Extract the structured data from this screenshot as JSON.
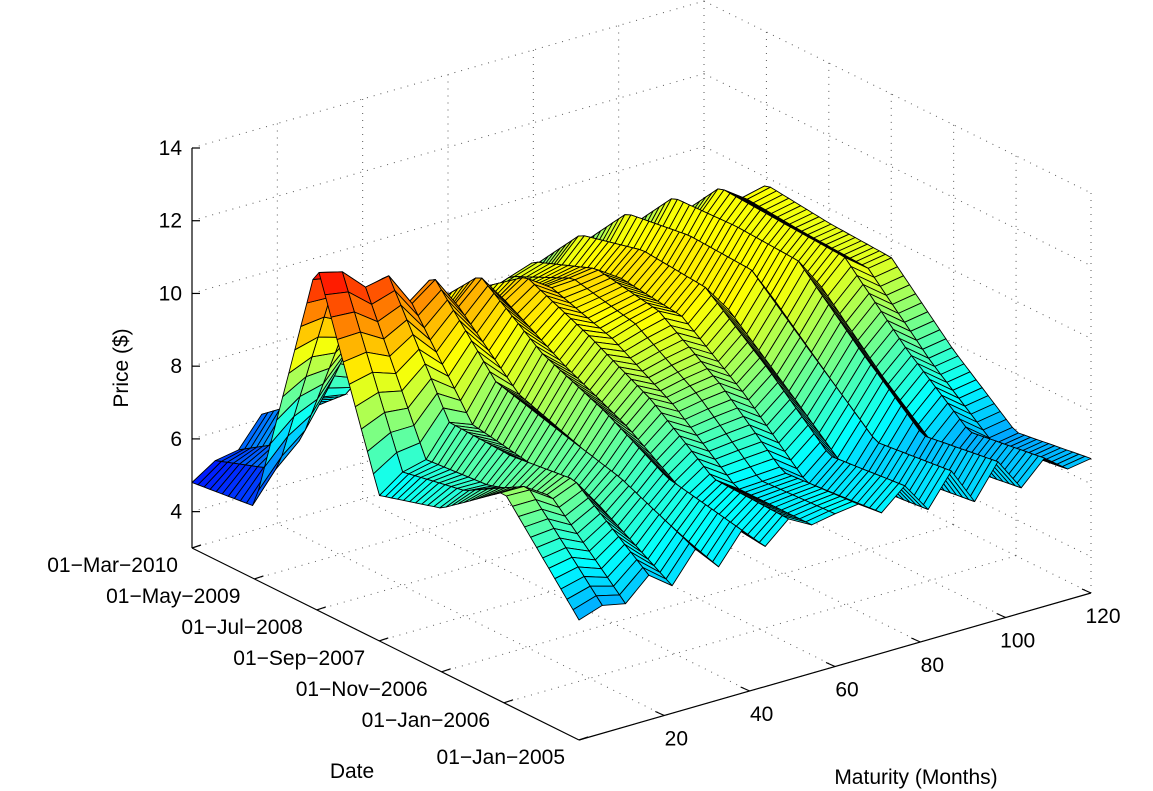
{
  "chart_data": {
    "type": "surface",
    "title": "",
    "xlabel": "Maturity (Months)",
    "ylabel": "Date",
    "zlabel": "Price ($)",
    "x_ticks": [
      20,
      40,
      60,
      80,
      100,
      120
    ],
    "y_ticks": [
      "01-Jan-2005",
      "01-Jan-2006",
      "01-Nov-2006",
      "01-Sep-2007",
      "01-Jul-2008",
      "01-May-2009",
      "01-Mar-2010"
    ],
    "z_ticks": [
      4,
      6,
      8,
      10,
      12,
      14
    ],
    "xlim": [
      0,
      120
    ],
    "ylim": [
      "01-Jan-2005",
      "01-Mar-2010"
    ],
    "zlim": [
      3,
      14
    ],
    "grid": true,
    "colormap": "jet",
    "colormap_stops": [
      "#00008f",
      "#0000ff",
      "#00ffff",
      "#ffff00",
      "#ff0000",
      "#800000"
    ],
    "maturity_months": [
      1,
      12,
      24,
      36,
      48,
      60,
      72,
      84,
      96,
      108,
      120
    ],
    "date_samples": [
      "01-Jan-2005",
      "01-Jan-2006",
      "01-Nov-2006",
      "01-Sep-2007",
      "01-Jul-2008",
      "01-May-2009",
      "01-Mar-2010"
    ],
    "series": [
      {
        "date": "01-Jan-2005",
        "values": [
          6.3,
          6.6,
          6.9,
          7.1,
          7.2,
          7.2,
          7.1,
          7.0,
          6.9,
          6.8,
          6.7
        ]
      },
      {
        "date": "01-Jan-2006",
        "values": [
          8.8,
          8.5,
          8.0,
          7.6,
          7.3,
          7.1,
          6.9,
          6.8,
          6.6,
          6.5,
          6.4
        ]
      },
      {
        "date": "01-Nov-2006",
        "values": [
          7.5,
          8.0,
          8.3,
          8.5,
          8.6,
          8.6,
          8.5,
          8.3,
          8.1,
          7.9,
          7.8
        ]
      },
      {
        "date": "01-Sep-2007",
        "values": [
          7.0,
          7.9,
          8.7,
          9.2,
          9.5,
          9.7,
          9.8,
          9.8,
          9.7,
          9.6,
          9.5
        ]
      },
      {
        "date": "01-Jul-2008",
        "values": [
          12.5,
          11.8,
          11.0,
          10.6,
          10.3,
          10.1,
          10.0,
          9.9,
          9.8,
          9.7,
          9.6
        ]
      },
      {
        "date": "01-May-2009",
        "values": [
          5.0,
          6.8,
          7.9,
          8.6,
          9.0,
          9.3,
          9.5,
          9.6,
          9.7,
          9.8,
          9.8
        ]
      },
      {
        "date": "01-Mar-2010",
        "values": [
          4.8,
          5.6,
          6.3,
          6.8,
          7.1,
          7.3,
          7.5,
          7.6,
          7.7,
          7.8,
          7.8
        ]
      }
    ]
  }
}
